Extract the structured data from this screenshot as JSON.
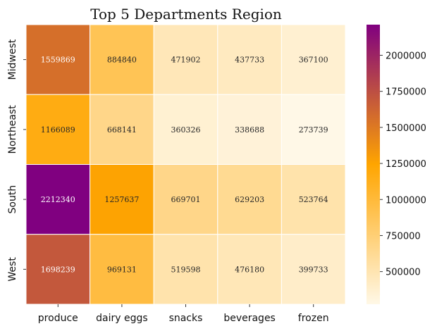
{
  "chart_data": {
    "type": "heatmap",
    "title": "Top 5 Departments Region",
    "x_categories": [
      "produce",
      "dairy eggs",
      "snacks",
      "beverages",
      "frozen"
    ],
    "y_categories": [
      "Midwest",
      "Northeast",
      "South",
      "West"
    ],
    "values": [
      [
        1559869,
        884840,
        471902,
        437733,
        367100
      ],
      [
        1166089,
        668141,
        360326,
        338688,
        273739
      ],
      [
        2212340,
        1257637,
        669701,
        629203,
        523764
      ],
      [
        1698239,
        969131,
        519598,
        476180,
        399733
      ]
    ],
    "colorbar": {
      "min": 273739,
      "max": 2212340,
      "ticks": [
        500000,
        750000,
        1000000,
        1250000,
        1500000,
        1750000,
        2000000
      ],
      "colors": [
        "#fff8e7",
        "#ffa500",
        "#800080"
      ]
    },
    "grid": false,
    "legend": "right"
  }
}
